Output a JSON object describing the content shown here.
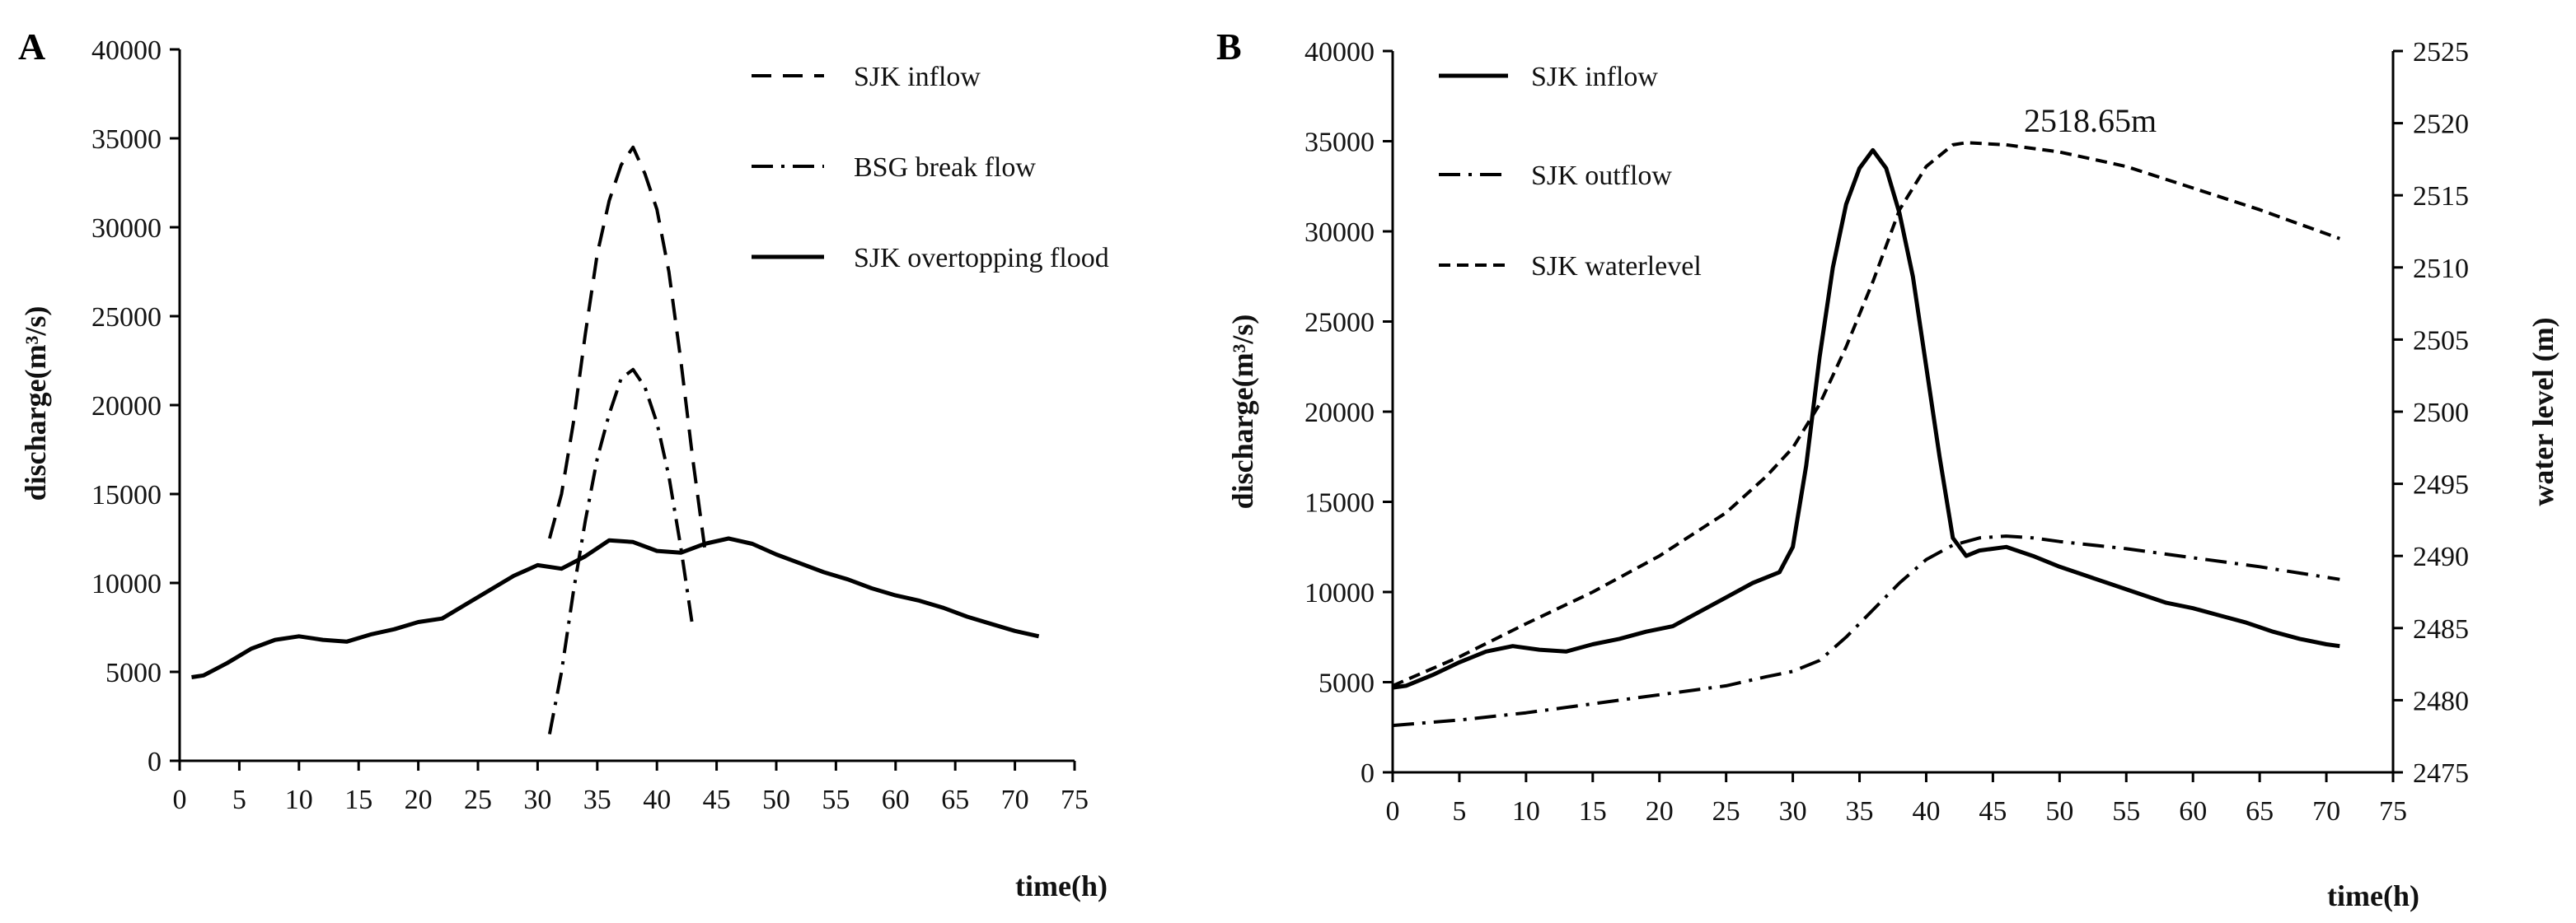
{
  "chart_data": [
    {
      "panel_label": "A",
      "type": "line",
      "xlabel": "time(h)",
      "ylabel": "discharge(m³/s)",
      "xlim": [
        0,
        75
      ],
      "ylim": [
        0,
        40000
      ],
      "xticks": [
        0,
        5,
        10,
        15,
        20,
        25,
        30,
        35,
        40,
        45,
        50,
        55,
        60,
        65,
        70,
        75
      ],
      "yticks": [
        0,
        5000,
        10000,
        15000,
        20000,
        25000,
        30000,
        35000,
        40000
      ],
      "grid": false,
      "legend_position": "top-right",
      "series": [
        {
          "name": "SJK inflow",
          "style": "dashed",
          "x": [
            31,
            32,
            33,
            34,
            35,
            36,
            37,
            38,
            39,
            40,
            41,
            42,
            43,
            44
          ],
          "y": [
            12500,
            15000,
            19000,
            24000,
            28500,
            31500,
            33500,
            34500,
            33000,
            31000,
            27500,
            22500,
            17000,
            12000
          ]
        },
        {
          "name": "BSG break flow",
          "style": "dash-dot",
          "x": [
            31,
            32,
            33,
            34,
            35,
            36,
            37,
            38,
            39,
            40,
            41,
            42,
            43
          ],
          "y": [
            1500,
            5000,
            9500,
            13500,
            17000,
            19500,
            21500,
            22000,
            21000,
            19000,
            16000,
            12000,
            7500
          ]
        },
        {
          "name": "SJK overtopping flood",
          "style": "solid",
          "x": [
            1,
            2,
            4,
            6,
            8,
            10,
            12,
            14,
            16,
            18,
            20,
            22,
            24,
            26,
            28,
            30,
            32,
            34,
            36,
            38,
            40,
            42,
            44,
            46,
            48,
            50,
            52,
            54,
            56,
            58,
            60,
            62,
            64,
            66,
            68,
            70,
            72
          ],
          "y": [
            4700,
            4800,
            5500,
            6300,
            6800,
            7000,
            6800,
            6700,
            7100,
            7400,
            7800,
            8000,
            8800,
            9600,
            10400,
            11000,
            10800,
            11500,
            12400,
            12300,
            11800,
            11700,
            12200,
            12500,
            12200,
            11600,
            11100,
            10600,
            10200,
            9700,
            9300,
            9000,
            8600,
            8100,
            7700,
            7300,
            7000
          ]
        }
      ]
    },
    {
      "panel_label": "B",
      "type": "line",
      "xlabel": "time(h)",
      "ylabel": "discharge(m³/s)",
      "y2label": "water level (m)",
      "xlim": [
        0,
        75
      ],
      "ylim": [
        0,
        40000
      ],
      "y2lim": [
        2475,
        2525
      ],
      "xticks": [
        0,
        5,
        10,
        15,
        20,
        25,
        30,
        35,
        40,
        45,
        50,
        55,
        60,
        65,
        70,
        75
      ],
      "yticks": [
        0,
        5000,
        10000,
        15000,
        20000,
        25000,
        30000,
        35000,
        40000
      ],
      "y2ticks": [
        2475,
        2480,
        2485,
        2490,
        2495,
        2500,
        2505,
        2510,
        2515,
        2520,
        2525
      ],
      "grid": false,
      "legend_position": "top-left",
      "annotation": "2518.65m",
      "series": [
        {
          "name": "SJK inflow",
          "style": "solid",
          "axis": "left",
          "x": [
            0,
            1,
            3,
            5,
            7,
            9,
            11,
            13,
            15,
            17,
            19,
            21,
            23,
            25,
            27,
            29,
            30,
            31,
            32,
            33,
            34,
            35,
            36,
            37,
            38,
            39,
            40,
            41,
            42,
            43,
            44,
            46,
            48,
            50,
            52,
            54,
            56,
            58,
            60,
            62,
            64,
            66,
            68,
            70,
            71
          ],
          "y": [
            4700,
            4800,
            5400,
            6100,
            6700,
            7000,
            6800,
            6700,
            7100,
            7400,
            7800,
            8100,
            8900,
            9700,
            10500,
            11100,
            12500,
            17000,
            23000,
            28000,
            31500,
            33500,
            34500,
            33500,
            31000,
            27500,
            22500,
            17500,
            13000,
            12000,
            12300,
            12500,
            12000,
            11400,
            10900,
            10400,
            9900,
            9400,
            9100,
            8700,
            8300,
            7800,
            7400,
            7100,
            7000
          ]
        },
        {
          "name": "SJK outflow",
          "style": "dash-dot",
          "axis": "left",
          "x": [
            0,
            5,
            10,
            15,
            20,
            25,
            28,
            30,
            32,
            34,
            36,
            38,
            40,
            42,
            44,
            46,
            48,
            50,
            55,
            60,
            65,
            71
          ],
          "y": [
            2600,
            2900,
            3300,
            3800,
            4300,
            4800,
            5300,
            5600,
            6200,
            7500,
            9000,
            10500,
            11800,
            12600,
            13000,
            13100,
            13000,
            12800,
            12400,
            11900,
            11400,
            10700
          ]
        },
        {
          "name": "SJK waterlevel",
          "style": "dashed",
          "axis": "right",
          "x": [
            0,
            5,
            10,
            15,
            20,
            25,
            28,
            30,
            32,
            34,
            36,
            38,
            40,
            42,
            43,
            46,
            50,
            55,
            60,
            65,
            71
          ],
          "y": [
            2481.0,
            2483.0,
            2485.3,
            2487.5,
            2490.0,
            2493.0,
            2495.5,
            2497.5,
            2500.5,
            2504.5,
            2509.0,
            2514.0,
            2517.0,
            2518.5,
            2518.65,
            2518.5,
            2518.0,
            2517.0,
            2515.5,
            2514.0,
            2512.0
          ]
        }
      ]
    }
  ]
}
